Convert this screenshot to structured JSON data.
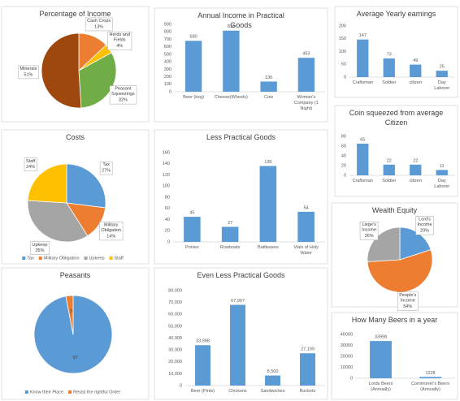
{
  "chart_data": [
    {
      "type": "pie",
      "title": "Percentage of Income",
      "categories": [
        "Cash Crops",
        "Herds and Fields",
        "Peasant Squeezings",
        "Minerals"
      ],
      "values": [
        13,
        4,
        32,
        51
      ],
      "value_labels": [
        "13%",
        "4%",
        "32%",
        "51%"
      ],
      "colors": [
        "#ed7d31",
        "#ffc000",
        "#70ad47",
        "#9e480e"
      ],
      "data_labels": "name_value"
    },
    {
      "type": "bar",
      "title": "Annual Income in Practical Goods",
      "categories": [
        "Beer (keg)",
        "Cheese(Wheels)",
        "Cow",
        "Woman's Company (1 Night)"
      ],
      "values": [
        680,
        816,
        136,
        453
      ],
      "color": "#5b9bd5",
      "ylim": [
        0,
        900
      ],
      "yticks": [
        0,
        100,
        200,
        300,
        400,
        500,
        600,
        700,
        800,
        900
      ],
      "grid": false
    },
    {
      "type": "bar",
      "title": "Average Yearly earnings",
      "categories": [
        "Craftsman",
        "Soldier",
        "citizen",
        "Day Laborer"
      ],
      "values": [
        147,
        73,
        49,
        25
      ],
      "color": "#5b9bd5",
      "ylim": [
        0,
        200
      ],
      "yticks": [
        0,
        50,
        100,
        150,
        200
      ],
      "grid": false
    },
    {
      "type": "bar",
      "title": "Coin squeezed from average Citizen",
      "categories": [
        "Craftsman",
        "Soldier",
        "citizen",
        "Day Laborer"
      ],
      "values": [
        65,
        22,
        22,
        11
      ],
      "color": "#5b9bd5",
      "ylim": [
        0,
        80
      ],
      "yticks": [
        0,
        20,
        40,
        60,
        80
      ],
      "grid": false
    },
    {
      "type": "pie",
      "title": "Costs",
      "categories": [
        "Tax",
        "Military Obligation",
        "Upkeep",
        "Staff"
      ],
      "values": [
        27,
        14,
        35,
        24
      ],
      "value_labels": [
        "27%",
        "14%",
        "35%",
        "24%"
      ],
      "colors": [
        "#5b9bd5",
        "#ed7d31",
        "#a5a5a5",
        "#ffc000"
      ],
      "data_labels": "name_value",
      "legend": "bottom"
    },
    {
      "type": "bar",
      "title": "Less Practical Goods",
      "categories": [
        "Ponies",
        "Rowboats",
        "Battleaxes",
        "Vials of Holy Water"
      ],
      "values": [
        45,
        27,
        136,
        54
      ],
      "color": "#5b9bd5",
      "ylim": [
        0,
        160
      ],
      "yticks": [
        0,
        20,
        40,
        60,
        80,
        100,
        120,
        140,
        160
      ],
      "grid": false
    },
    {
      "type": "pie",
      "title": "Wealth Equity",
      "categories": [
        "Lord's Income",
        "People's Income",
        "Liege's Income"
      ],
      "values": [
        20,
        54,
        26
      ],
      "value_labels": [
        "20%",
        "54%",
        "26%"
      ],
      "colors": [
        "#5b9bd5",
        "#ed7d31",
        "#a5a5a5"
      ],
      "data_labels": "name_value"
    },
    {
      "type": "pie",
      "title": "Peasants",
      "categories": [
        "Know their Place",
        "Resist the rightful Order"
      ],
      "values": [
        97,
        3
      ],
      "colors": [
        "#5b9bd5",
        "#ed7d31"
      ],
      "data_labels": "value",
      "legend": "bottom"
    },
    {
      "type": "bar",
      "title": "Even Less Practical Goods",
      "categories": [
        "Beer (Pints)",
        "Chickens",
        "Sandwiches",
        "Buckets"
      ],
      "values": [
        33998,
        67997,
        8500,
        27199
      ],
      "value_labels": [
        "33,998",
        "67,997",
        "8,500",
        "27,199"
      ],
      "color": "#5b9bd5",
      "ylim": [
        0,
        80000
      ],
      "yticks": [
        {
          "value": 0,
          "label": "0"
        },
        {
          "value": 10000,
          "label": "10,000"
        },
        {
          "value": 20000,
          "label": "20,000"
        },
        {
          "value": 30000,
          "label": "30,000"
        },
        {
          "value": 40000,
          "label": "40,000"
        },
        {
          "value": 50000,
          "label": "50,000"
        },
        {
          "value": 60000,
          "label": "60,000"
        },
        {
          "value": 70000,
          "label": "70,000"
        },
        {
          "value": 80000,
          "label": "80,000"
        }
      ],
      "grid": false
    },
    {
      "type": "bar",
      "title": "How Many Beers in a year",
      "categories": [
        "Lords Beers (Annually)",
        "Commoner's Beers (Annually)"
      ],
      "values": [
        33998,
        1228
      ],
      "color": "#5b9bd5",
      "ylim": [
        0,
        40000
      ],
      "yticks": [
        0,
        10000,
        20000,
        30000,
        40000
      ],
      "grid": false
    }
  ]
}
